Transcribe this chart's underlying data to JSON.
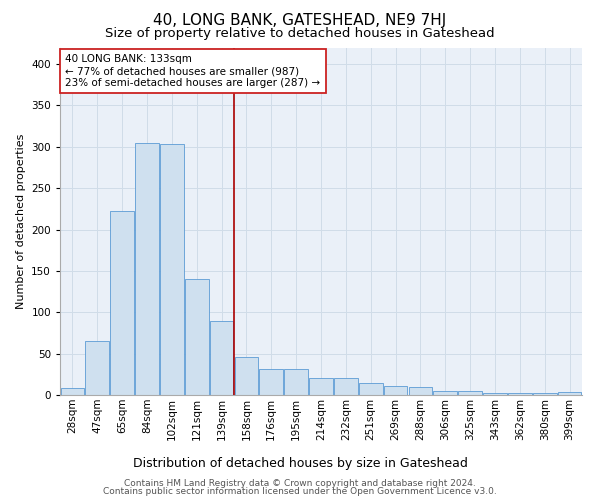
{
  "title": "40, LONG BANK, GATESHEAD, NE9 7HJ",
  "subtitle": "Size of property relative to detached houses in Gateshead",
  "xlabel": "Distribution of detached houses by size in Gateshead",
  "ylabel": "Number of detached properties",
  "categories": [
    "28sqm",
    "47sqm",
    "65sqm",
    "84sqm",
    "102sqm",
    "121sqm",
    "139sqm",
    "158sqm",
    "176sqm",
    "195sqm",
    "214sqm",
    "232sqm",
    "251sqm",
    "269sqm",
    "288sqm",
    "306sqm",
    "325sqm",
    "343sqm",
    "362sqm",
    "380sqm",
    "399sqm"
  ],
  "values": [
    8,
    65,
    222,
    305,
    303,
    140,
    90,
    46,
    31,
    31,
    20,
    20,
    15,
    11,
    10,
    5,
    5,
    3,
    3,
    3,
    4
  ],
  "bar_color": "#cfe0ef",
  "bar_edge_color": "#5b9bd5",
  "grid_color": "#d0dce8",
  "background_color": "#eaf0f8",
  "vline_x": 6.48,
  "vline_color": "#aa0000",
  "annotation_text": "40 LONG BANK: 133sqm\n← 77% of detached houses are smaller (987)\n23% of semi-detached houses are larger (287) →",
  "annotation_box_color": "#ffffff",
  "annotation_box_edge": "#cc2222",
  "ylim": [
    0,
    420
  ],
  "yticks": [
    0,
    50,
    100,
    150,
    200,
    250,
    300,
    350,
    400
  ],
  "footer1": "Contains HM Land Registry data © Crown copyright and database right 2024.",
  "footer2": "Contains public sector information licensed under the Open Government Licence v3.0.",
  "title_fontsize": 11,
  "subtitle_fontsize": 9.5,
  "xlabel_fontsize": 9,
  "ylabel_fontsize": 8,
  "tick_fontsize": 7.5,
  "footer_fontsize": 6.5
}
